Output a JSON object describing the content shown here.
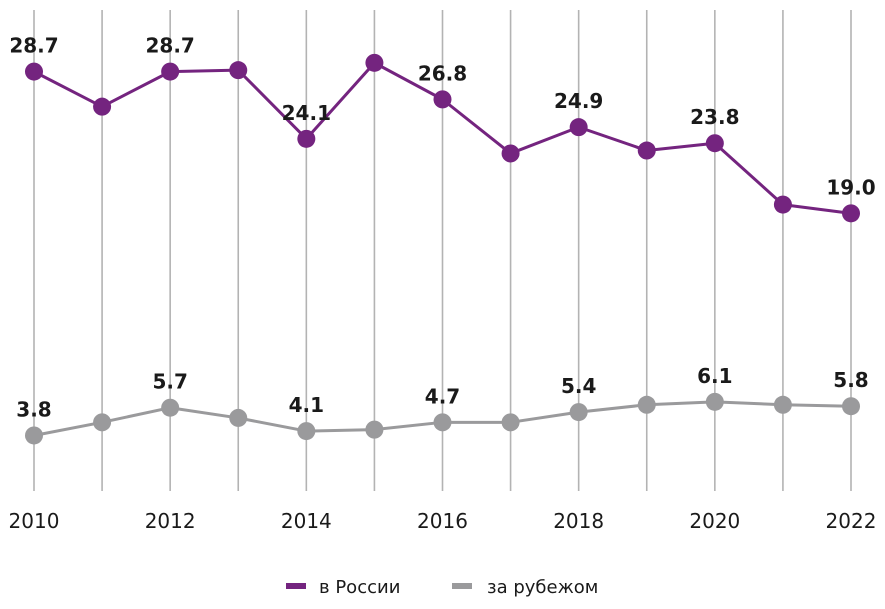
{
  "chart_data": {
    "type": "line",
    "x": [
      2010,
      2011,
      2012,
      2013,
      2014,
      2015,
      2016,
      2017,
      2018,
      2019,
      2020,
      2021,
      2022
    ],
    "x_tick_labels": [
      "2010",
      "2012",
      "2014",
      "2016",
      "2018",
      "2020",
      "2022"
    ],
    "x_ticks": [
      2010,
      2012,
      2014,
      2016,
      2018,
      2020,
      2022
    ],
    "ylim": [
      0,
      31
    ],
    "grid": "vertical",
    "title": "",
    "xlabel": "",
    "ylabel": "",
    "legend_position": "bottom-center",
    "series": [
      {
        "name": "в России",
        "color": "#74247f",
        "values": [
          28.7,
          26.3,
          28.7,
          28.8,
          24.1,
          29.3,
          26.8,
          23.1,
          24.9,
          23.3,
          23.8,
          19.6,
          19.0
        ],
        "labels": {
          "0": "28.7",
          "2": "28.7",
          "4": "24.1",
          "6": "26.8",
          "8": "24.9",
          "10": "23.8",
          "12": "19.0"
        }
      },
      {
        "name": "за рубежом",
        "color": "#9a9a9c",
        "values": [
          3.8,
          4.7,
          5.7,
          5.0,
          4.1,
          4.2,
          4.7,
          4.7,
          5.4,
          5.9,
          6.1,
          5.9,
          5.8
        ],
        "labels": {
          "0": "3.8",
          "2": "5.7",
          "4": "4.1",
          "6": "4.7",
          "8": "5.4",
          "10": "6.1",
          "12": "5.8"
        }
      }
    ]
  }
}
